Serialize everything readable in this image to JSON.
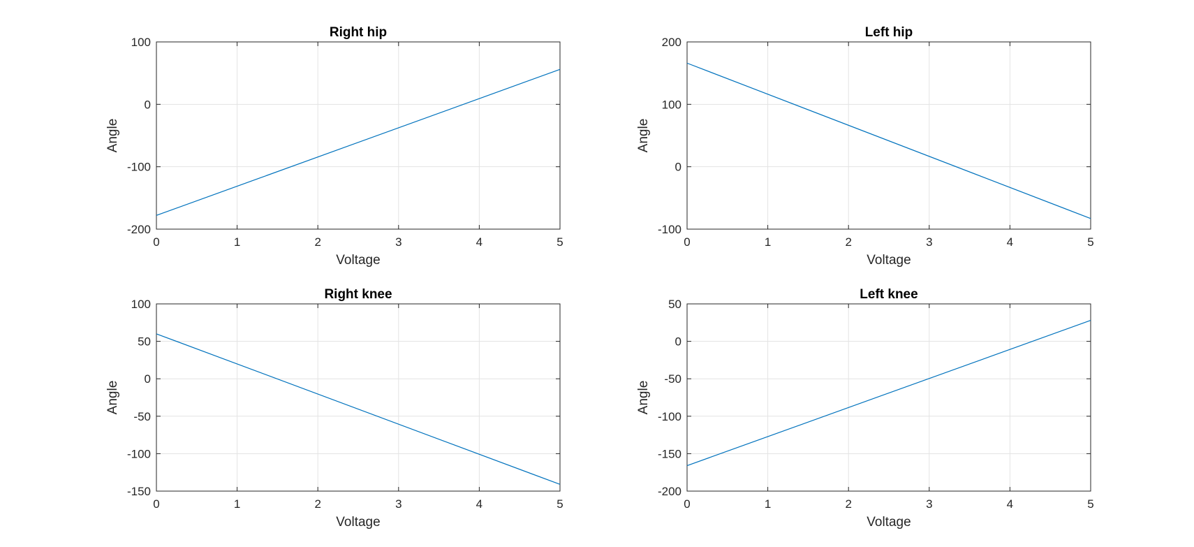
{
  "chart_data": [
    {
      "type": "line",
      "title": "Right hip",
      "xlabel": "Voltage",
      "ylabel": "Angle",
      "xlim": [
        0,
        5
      ],
      "ylim": [
        -200,
        100
      ],
      "xticks": [
        0,
        1,
        2,
        3,
        4,
        5
      ],
      "yticks": [
        -200,
        -100,
        0,
        100
      ],
      "grid": true,
      "series": [
        {
          "x": [
            0,
            5
          ],
          "y": [
            -178,
            56
          ],
          "color": "#0072BD"
        }
      ]
    },
    {
      "type": "line",
      "title": "Left hip",
      "xlabel": "Voltage",
      "ylabel": "Angle",
      "xlim": [
        0,
        5
      ],
      "ylim": [
        -100,
        200
      ],
      "xticks": [
        0,
        1,
        2,
        3,
        4,
        5
      ],
      "yticks": [
        -100,
        0,
        100,
        200
      ],
      "grid": true,
      "series": [
        {
          "x": [
            0,
            5
          ],
          "y": [
            166,
            -83
          ],
          "color": "#0072BD"
        }
      ]
    },
    {
      "type": "line",
      "title": "Right knee",
      "xlabel": "Voltage",
      "ylabel": "Angle",
      "xlim": [
        0,
        5
      ],
      "ylim": [
        -150,
        100
      ],
      "xticks": [
        0,
        1,
        2,
        3,
        4,
        5
      ],
      "yticks": [
        -150,
        -100,
        -50,
        0,
        50,
        100
      ],
      "grid": true,
      "series": [
        {
          "x": [
            0,
            5
          ],
          "y": [
            60,
            -141
          ],
          "color": "#0072BD"
        }
      ]
    },
    {
      "type": "line",
      "title": "Left knee",
      "xlabel": "Voltage",
      "ylabel": "Angle",
      "xlim": [
        0,
        5
      ],
      "ylim": [
        -200,
        50
      ],
      "xticks": [
        0,
        1,
        2,
        3,
        4,
        5
      ],
      "yticks": [
        -200,
        -150,
        -100,
        -50,
        0,
        50
      ],
      "grid": true,
      "series": [
        {
          "x": [
            0,
            5
          ],
          "y": [
            -166,
            28
          ],
          "color": "#0072BD"
        }
      ]
    }
  ]
}
